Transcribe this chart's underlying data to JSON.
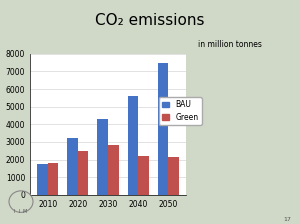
{
  "years": [
    "2010",
    "2020",
    "2030",
    "2040",
    "2050"
  ],
  "bau_values": [
    1750,
    3200,
    4300,
    5600,
    7500
  ],
  "green_values": [
    1800,
    2500,
    2850,
    2200,
    2150
  ],
  "bau_color": "#4472C4",
  "green_color": "#C0504D",
  "ylim": [
    0,
    8000
  ],
  "yticks": [
    0,
    1000,
    2000,
    3000,
    4000,
    5000,
    6000,
    7000,
    8000
  ],
  "title": "CO₂ emissions",
  "ylabel_text": "in million tonnes",
  "legend_bau": "BAU",
  "legend_green": "Green",
  "bg_top_color": "#d8eeaa",
  "bg_bottom_color": "#d0d8c8",
  "background_inner": "#ffffff",
  "title_fontsize": 11,
  "axis_fontsize": 5.5,
  "legend_fontsize": 5.5,
  "label_fontsize": 5.5
}
